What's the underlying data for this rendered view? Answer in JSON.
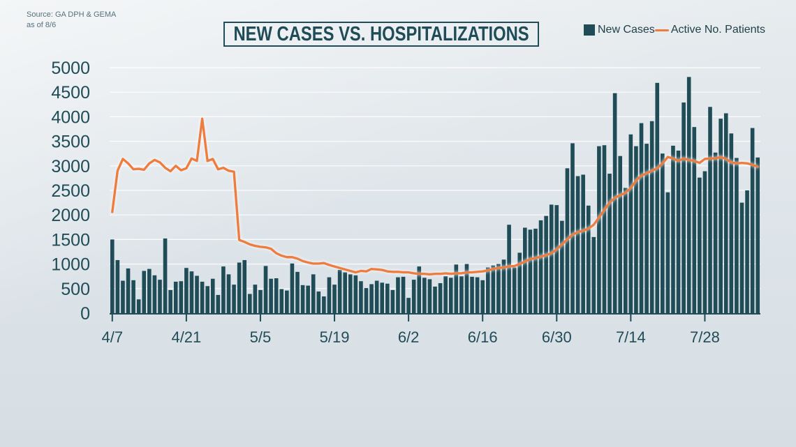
{
  "source": {
    "line1": "Source: GA DPH & GEMA",
    "line2": "as of 8/6"
  },
  "title": "NEW CASES VS. HOSPITALIZATIONS",
  "legend": {
    "bars_label": "New Cases",
    "line_label": "Active No. Patients"
  },
  "colors": {
    "bars": "#1f4c57",
    "line": "#ee7c3c",
    "axis": "#1f4c57",
    "grid": "#ffffff"
  },
  "chart_data": {
    "type": "bar",
    "title": "NEW CASES VS. HOSPITALIZATIONS",
    "xlabel": "",
    "ylabel": "",
    "ylim": [
      0,
      5000
    ],
    "yticks": [
      "0",
      "500",
      "1000",
      "1500",
      "2000",
      "2500",
      "3000",
      "3500",
      "4000",
      "4500",
      "5000"
    ],
    "xtick_labels": [
      "4/7",
      "4/21",
      "5/5",
      "5/19",
      "6/2",
      "6/16",
      "6/30",
      "7/14",
      "7/28"
    ],
    "xtick_day_index": [
      0,
      14,
      28,
      42,
      56,
      70,
      84,
      98,
      112
    ],
    "grid": true,
    "legend_position": "top-right",
    "start_date": "4/7",
    "series": [
      {
        "name": "New Cases",
        "type": "bar",
        "values": [
          1500,
          1080,
          660,
          910,
          670,
          280,
          860,
          900,
          770,
          680,
          1520,
          470,
          640,
          650,
          920,
          850,
          760,
          640,
          550,
          700,
          370,
          950,
          790,
          580,
          1030,
          1080,
          390,
          580,
          470,
          960,
          700,
          710,
          490,
          460,
          1010,
          840,
          570,
          560,
          790,
          440,
          340,
          730,
          580,
          880,
          830,
          790,
          770,
          650,
          510,
          590,
          660,
          620,
          600,
          470,
          730,
          740,
          310,
          680,
          950,
          720,
          690,
          540,
          610,
          750,
          720,
          990,
          750,
          1000,
          740,
          730,
          670,
          930,
          970,
          1000,
          1090,
          1800,
          930,
          1230,
          1740,
          1700,
          1720,
          1890,
          1980,
          2210,
          2200,
          1880,
          2950,
          3460,
          2790,
          2820,
          2190,
          1550,
          3400,
          3420,
          2840,
          4480,
          3200,
          2550,
          3640,
          3400,
          3870,
          3450,
          3910,
          4690,
          3250,
          2460,
          3410,
          3310,
          4290,
          4810,
          3790,
          2760,
          2890,
          4200,
          3270,
          3960,
          4070,
          3660,
          3160,
          2250,
          2500,
          3770,
          3170
        ]
      },
      {
        "name": "Active No. Patients",
        "type": "line",
        "values": [
          2060,
          2900,
          3140,
          3050,
          2930,
          2940,
          2920,
          3050,
          3120,
          3070,
          2960,
          2890,
          3000,
          2910,
          2950,
          3150,
          3100,
          3960,
          3100,
          3140,
          2930,
          2960,
          2900,
          2880,
          1490,
          1450,
          1400,
          1370,
          1350,
          1340,
          1310,
          1220,
          1170,
          1140,
          1140,
          1110,
          1060,
          1030,
          1010,
          1010,
          1020,
          980,
          950,
          920,
          890,
          860,
          830,
          860,
          850,
          900,
          890,
          880,
          850,
          840,
          840,
          830,
          830,
          810,
          800,
          800,
          790,
          800,
          800,
          810,
          800,
          810,
          810,
          830,
          830,
          840,
          850,
          870,
          900,
          920,
          930,
          950,
          960,
          1000,
          1050,
          1100,
          1120,
          1150,
          1180,
          1220,
          1300,
          1400,
          1500,
          1600,
          1650,
          1680,
          1720,
          1800,
          1950,
          2100,
          2250,
          2350,
          2400,
          2450,
          2550,
          2700,
          2800,
          2850,
          2900,
          2950,
          3050,
          3180,
          3150,
          3100,
          3150,
          3120,
          3100,
          3060,
          3140,
          3150,
          3150,
          3180,
          3140,
          3070,
          3050,
          3060,
          3050,
          3020,
          2980
        ]
      }
    ]
  }
}
